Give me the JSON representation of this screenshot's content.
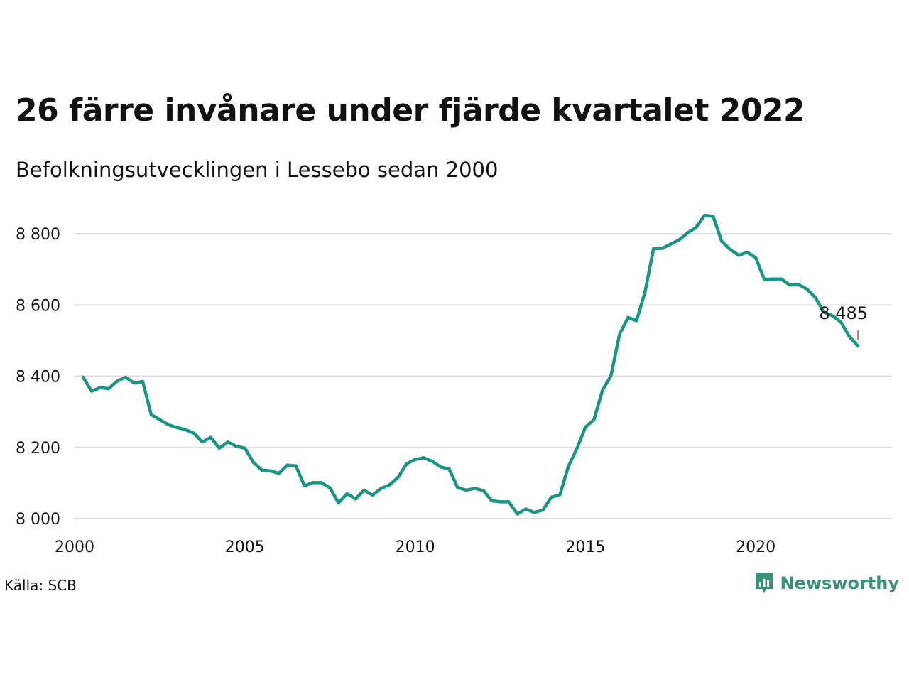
{
  "header": {
    "title": "26 färre invånare under fjärde kvartalet 2022",
    "subtitle": "Befolkningsutvecklingen i Lessebo sedan 2000"
  },
  "footer": {
    "source": "Källa: SCB",
    "brand": "Newsworthy"
  },
  "colors": {
    "line": "#1a9484",
    "grid": "#dcdce2",
    "brand": "#3c8f78"
  },
  "chart_data": {
    "type": "line",
    "title": "26 färre invånare under fjärde kvartalet 2022",
    "subtitle": "Befolkningsutvecklingen i Lessebo sedan 2000",
    "xlabel": "",
    "ylabel": "",
    "xlim": [
      2000,
      2024
    ],
    "ylim": [
      7970,
      8890
    ],
    "x_ticks": [
      {
        "value": 2000,
        "label": "2000"
      },
      {
        "value": 2005,
        "label": "2005"
      },
      {
        "value": 2010,
        "label": "2010"
      },
      {
        "value": 2015,
        "label": "2015"
      },
      {
        "value": 2020,
        "label": "2020"
      }
    ],
    "y_ticks": [
      {
        "value": 8000,
        "label": "8 000"
      },
      {
        "value": 8200,
        "label": "8 200"
      },
      {
        "value": 8400,
        "label": "8 400"
      },
      {
        "value": 8600,
        "label": "8 600"
      },
      {
        "value": 8800,
        "label": "8 800"
      }
    ],
    "grid": "horizontal",
    "end_label": "8 485",
    "series": [
      {
        "x": [
          2000.25,
          2000.5,
          2000.75,
          2001.0,
          2001.25,
          2001.5,
          2001.75,
          2002.0,
          2002.25,
          2002.5,
          2002.75,
          2003.0,
          2003.25,
          2003.5,
          2003.75,
          2004.0,
          2004.25,
          2004.5,
          2004.75,
          2005.0,
          2005.25,
          2005.5,
          2005.75,
          2006.0,
          2006.25,
          2006.5,
          2006.75,
          2007.0,
          2007.25,
          2007.5,
          2007.75,
          2008.0,
          2008.25,
          2008.5,
          2008.75,
          2009.0,
          2009.25,
          2009.5,
          2009.75,
          2010.0,
          2010.25,
          2010.5,
          2010.75,
          2011.0,
          2011.25,
          2011.5,
          2011.75,
          2012.0,
          2012.25,
          2012.5,
          2012.75,
          2013.0,
          2013.25,
          2013.5,
          2013.75,
          2014.0,
          2014.25,
          2014.5,
          2014.75,
          2015.0,
          2015.25,
          2015.5,
          2015.75,
          2016.0,
          2016.25,
          2016.5,
          2016.75,
          2017.0,
          2017.25,
          2017.5,
          2017.75,
          2018.0,
          2018.25,
          2018.5,
          2018.75,
          2019.0,
          2019.25,
          2019.5,
          2019.75,
          2020.0,
          2020.25,
          2020.5,
          2020.75,
          2021.0,
          2021.25,
          2021.5,
          2021.75,
          2022.0,
          2022.25,
          2022.5,
          2022.75,
          2023.0
        ],
        "values": [
          8397,
          8358,
          8368,
          8365,
          8386,
          8397,
          8381,
          8385,
          8292,
          8278,
          8264,
          8256,
          8250,
          8240,
          8215,
          8228,
          8198,
          8215,
          8203,
          8198,
          8158,
          8136,
          8134,
          8127,
          8150,
          8148,
          8092,
          8101,
          8101,
          8086,
          8044,
          8070,
          8055,
          8080,
          8066,
          8085,
          8095,
          8116,
          8154,
          8166,
          8171,
          8161,
          8145,
          8139,
          8087,
          8080,
          8085,
          8079,
          8050,
          8047,
          8047,
          8013,
          8027,
          8017,
          8024,
          8060,
          8067,
          8147,
          8197,
          8257,
          8278,
          8361,
          8401,
          8517,
          8565,
          8556,
          8637,
          8758,
          8759,
          8771,
          8783,
          8803,
          8818,
          8852,
          8849,
          8779,
          8756,
          8740,
          8748,
          8733,
          8672,
          8673,
          8673,
          8656,
          8658,
          8645,
          8621,
          8580,
          8570,
          8552,
          8511,
          8485
        ]
      }
    ]
  }
}
